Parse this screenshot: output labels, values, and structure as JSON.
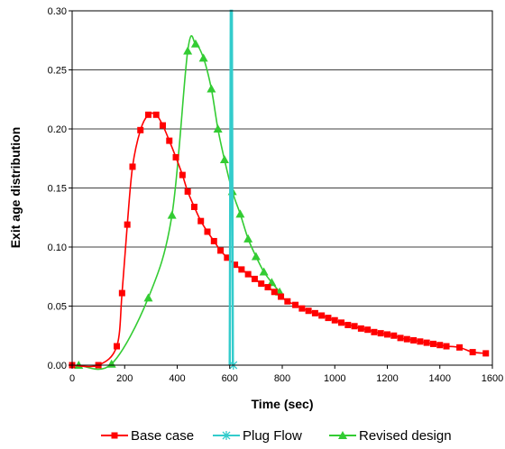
{
  "chart_data": {
    "type": "line",
    "xlabel": "Time (sec)",
    "ylabel": "Exit age distribution",
    "xlim": [
      0,
      1600
    ],
    "ylim": [
      0,
      0.3
    ],
    "x_ticks": [
      "0",
      "200",
      "400",
      "600",
      "800",
      "1000",
      "1200",
      "1400",
      "1600"
    ],
    "y_ticks": [
      "0.00",
      "0.05",
      "0.10",
      "0.15",
      "0.20",
      "0.25",
      "0.30"
    ],
    "grid": "horizontal",
    "legend_position": "bottom",
    "series": [
      {
        "name": "Base case",
        "color": "#ff0000",
        "marker": "square",
        "points": [
          [
            0,
            0.0
          ],
          [
            100,
            0.0
          ],
          [
            170,
            0.016
          ],
          [
            190,
            0.061
          ],
          [
            210,
            0.119
          ],
          [
            230,
            0.168
          ],
          [
            260,
            0.199
          ],
          [
            290,
            0.212
          ],
          [
            320,
            0.212
          ],
          [
            345,
            0.203
          ],
          [
            370,
            0.19
          ],
          [
            395,
            0.176
          ],
          [
            420,
            0.161
          ],
          [
            440,
            0.147
          ],
          [
            465,
            0.134
          ],
          [
            490,
            0.122
          ],
          [
            515,
            0.113
          ],
          [
            540,
            0.105
          ],
          [
            565,
            0.097
          ],
          [
            590,
            0.091
          ],
          [
            620,
            0.085
          ],
          [
            645,
            0.081
          ],
          [
            670,
            0.077
          ],
          [
            695,
            0.073
          ],
          [
            720,
            0.069
          ],
          [
            745,
            0.066
          ],
          [
            770,
            0.062
          ],
          [
            795,
            0.058
          ],
          [
            820,
            0.054
          ],
          [
            850,
            0.051
          ],
          [
            875,
            0.048
          ],
          [
            900,
            0.046
          ],
          [
            925,
            0.044
          ],
          [
            950,
            0.042
          ],
          [
            975,
            0.04
          ],
          [
            1000,
            0.038
          ],
          [
            1025,
            0.036
          ],
          [
            1050,
            0.034
          ],
          [
            1075,
            0.033
          ],
          [
            1100,
            0.031
          ],
          [
            1125,
            0.03
          ],
          [
            1150,
            0.028
          ],
          [
            1175,
            0.027
          ],
          [
            1200,
            0.026
          ],
          [
            1225,
            0.025
          ],
          [
            1250,
            0.023
          ],
          [
            1275,
            0.022
          ],
          [
            1300,
            0.021
          ],
          [
            1325,
            0.02
          ],
          [
            1350,
            0.019
          ],
          [
            1375,
            0.018
          ],
          [
            1400,
            0.017
          ],
          [
            1425,
            0.016
          ],
          [
            1475,
            0.015
          ],
          [
            1525,
            0.011
          ],
          [
            1575,
            0.01
          ]
        ]
      },
      {
        "name": "Plug Flow",
        "color": "#33cccc",
        "marker": "star",
        "points": [
          [
            600,
            0.0
          ],
          [
            604,
            0.3
          ],
          [
            608,
            0.3
          ],
          [
            612,
            0.0
          ]
        ]
      },
      {
        "name": "Revised design",
        "color": "#33cc33",
        "marker": "triangle",
        "points": [
          [
            25,
            0.0
          ],
          [
            150,
            0.001
          ],
          [
            290,
            0.057
          ],
          [
            380,
            0.127
          ],
          [
            440,
            0.266
          ],
          [
            470,
            0.272
          ],
          [
            500,
            0.26
          ],
          [
            530,
            0.234
          ],
          [
            555,
            0.2
          ],
          [
            580,
            0.174
          ],
          [
            610,
            0.147
          ],
          [
            640,
            0.128
          ],
          [
            670,
            0.107
          ],
          [
            700,
            0.092
          ],
          [
            730,
            0.079
          ],
          [
            760,
            0.07
          ],
          [
            790,
            0.062
          ]
        ]
      }
    ]
  }
}
